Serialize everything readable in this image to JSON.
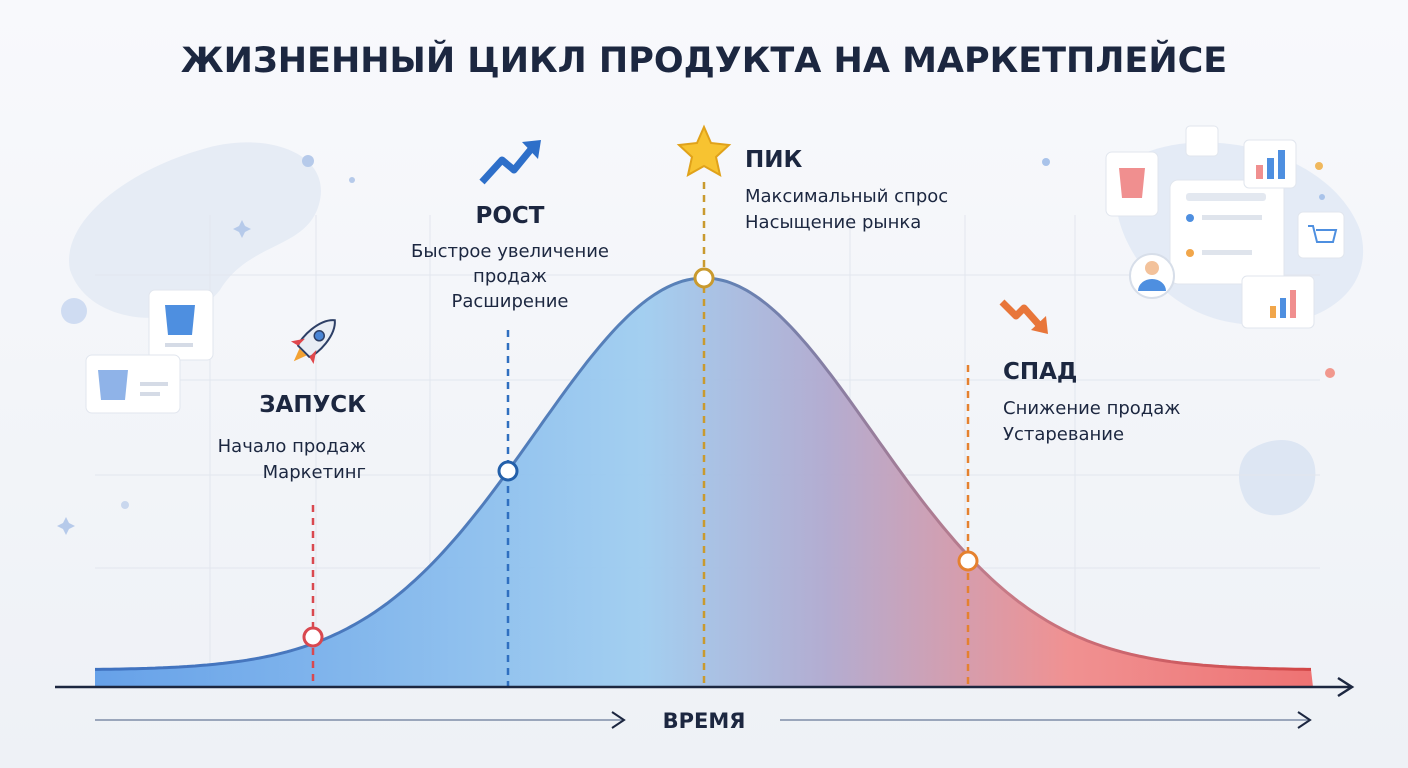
{
  "title": "ЖИЗНЕННЫЙ ЦИКЛ ПРОДУКТА НА МАРКЕТПЛЕЙСЕ",
  "stages": [
    {
      "title": "ЗАПУСК",
      "lines": [
        "Начало продаж",
        "Маркетинг"
      ]
    },
    {
      "title": "РОСТ",
      "lines": [
        "Быстрое увеличение",
        "продаж",
        "Расширение"
      ]
    },
    {
      "title": "ПИК",
      "lines": [
        "Максимальный спрос",
        "Насыщение рынка"
      ]
    },
    {
      "title": "СПАД",
      "lines": [
        "Снижение продаж",
        "Устаревание"
      ]
    }
  ],
  "axis_label": "ВРЕМЯ"
}
